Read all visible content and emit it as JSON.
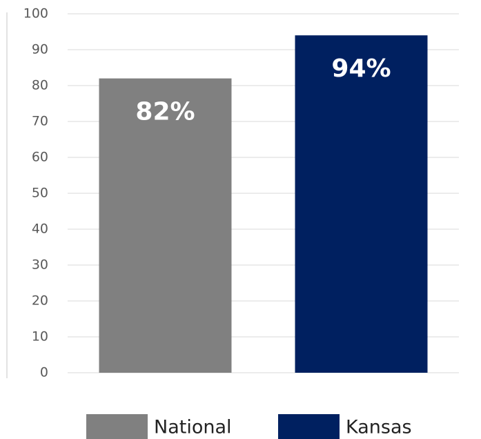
{
  "chart_data": {
    "type": "bar",
    "categories": [
      null
    ],
    "series": [
      {
        "name": "National",
        "color": "#808080",
        "values": [
          82
        ],
        "value_labels": [
          "82%"
        ]
      },
      {
        "name": "Kansas",
        "color": "#002060",
        "values": [
          94
        ],
        "value_labels": [
          "94%"
        ]
      }
    ],
    "ylim": [
      0,
      100
    ],
    "yticks": [
      0,
      10,
      20,
      30,
      40,
      50,
      60,
      70,
      80,
      90,
      100
    ],
    "grid": true,
    "legend": "bottom"
  }
}
